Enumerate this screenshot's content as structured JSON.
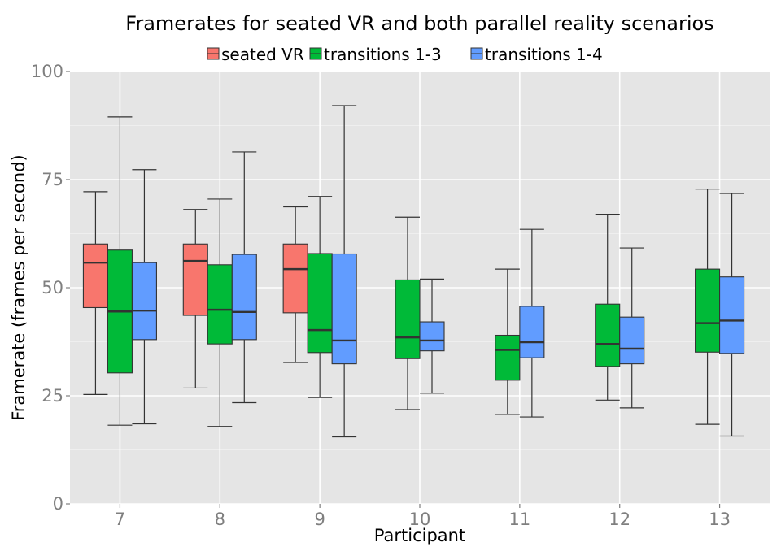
{
  "chart_data": {
    "type": "boxplot",
    "title": "Framerates for seated VR and both parallel reality scenarios",
    "xlabel": "Participant",
    "ylabel": "Framerate (frames per second)",
    "ylim": [
      0,
      100
    ],
    "yticks": [
      0,
      25,
      50,
      75,
      100
    ],
    "categories": [
      "7",
      "8",
      "9",
      "10",
      "11",
      "12",
      "13"
    ],
    "legend_position": "top",
    "grid": true,
    "series": [
      {
        "name": "seated VR",
        "color": "#F8766D",
        "boxes": [
          {
            "category": "7",
            "min": 25.3,
            "q1": 45.4,
            "median": 55.8,
            "q3": 60.1,
            "max": 72.2
          },
          {
            "category": "8",
            "min": 26.8,
            "q1": 43.6,
            "median": 56.2,
            "q3": 60.1,
            "max": 68.1
          },
          {
            "category": "9",
            "min": 32.7,
            "q1": 44.2,
            "median": 54.3,
            "q3": 60.1,
            "max": 68.7
          }
        ]
      },
      {
        "name": "transitions 1-3",
        "color": "#00BA38",
        "boxes": [
          {
            "category": "7",
            "min": 18.2,
            "q1": 30.3,
            "median": 44.5,
            "q3": 58.7,
            "max": 89.5
          },
          {
            "category": "8",
            "min": 17.9,
            "q1": 37.0,
            "median": 44.9,
            "q3": 55.3,
            "max": 70.5
          },
          {
            "category": "9",
            "min": 24.6,
            "q1": 35.0,
            "median": 40.2,
            "q3": 57.9,
            "max": 71.1
          },
          {
            "category": "10",
            "min": 21.8,
            "q1": 33.6,
            "median": 38.5,
            "q3": 51.8,
            "max": 66.3
          },
          {
            "category": "11",
            "min": 20.7,
            "q1": 28.6,
            "median": 35.6,
            "q3": 39.0,
            "max": 54.3
          },
          {
            "category": "12",
            "min": 24.0,
            "q1": 31.8,
            "median": 37.0,
            "q3": 46.2,
            "max": 67.0
          },
          {
            "category": "13",
            "min": 18.4,
            "q1": 35.1,
            "median": 41.8,
            "q3": 54.3,
            "max": 72.8
          }
        ]
      },
      {
        "name": "transitions 1-4",
        "color": "#619CFF",
        "boxes": [
          {
            "category": "7",
            "min": 18.5,
            "q1": 38.0,
            "median": 44.7,
            "q3": 55.8,
            "max": 77.3
          },
          {
            "category": "8",
            "min": 23.4,
            "q1": 38.0,
            "median": 44.4,
            "q3": 57.7,
            "max": 81.4
          },
          {
            "category": "9",
            "min": 15.5,
            "q1": 32.4,
            "median": 37.8,
            "q3": 57.8,
            "max": 92.1
          },
          {
            "category": "10",
            "min": 25.6,
            "q1": 35.4,
            "median": 37.8,
            "q3": 42.1,
            "max": 52.0
          },
          {
            "category": "11",
            "min": 20.1,
            "q1": 33.8,
            "median": 37.4,
            "q3": 45.7,
            "max": 63.5
          },
          {
            "category": "12",
            "min": 22.2,
            "q1": 32.4,
            "median": 35.9,
            "q3": 43.2,
            "max": 59.2
          },
          {
            "category": "13",
            "min": 15.7,
            "q1": 34.8,
            "median": 42.4,
            "q3": 52.5,
            "max": 71.8
          }
        ]
      }
    ]
  }
}
